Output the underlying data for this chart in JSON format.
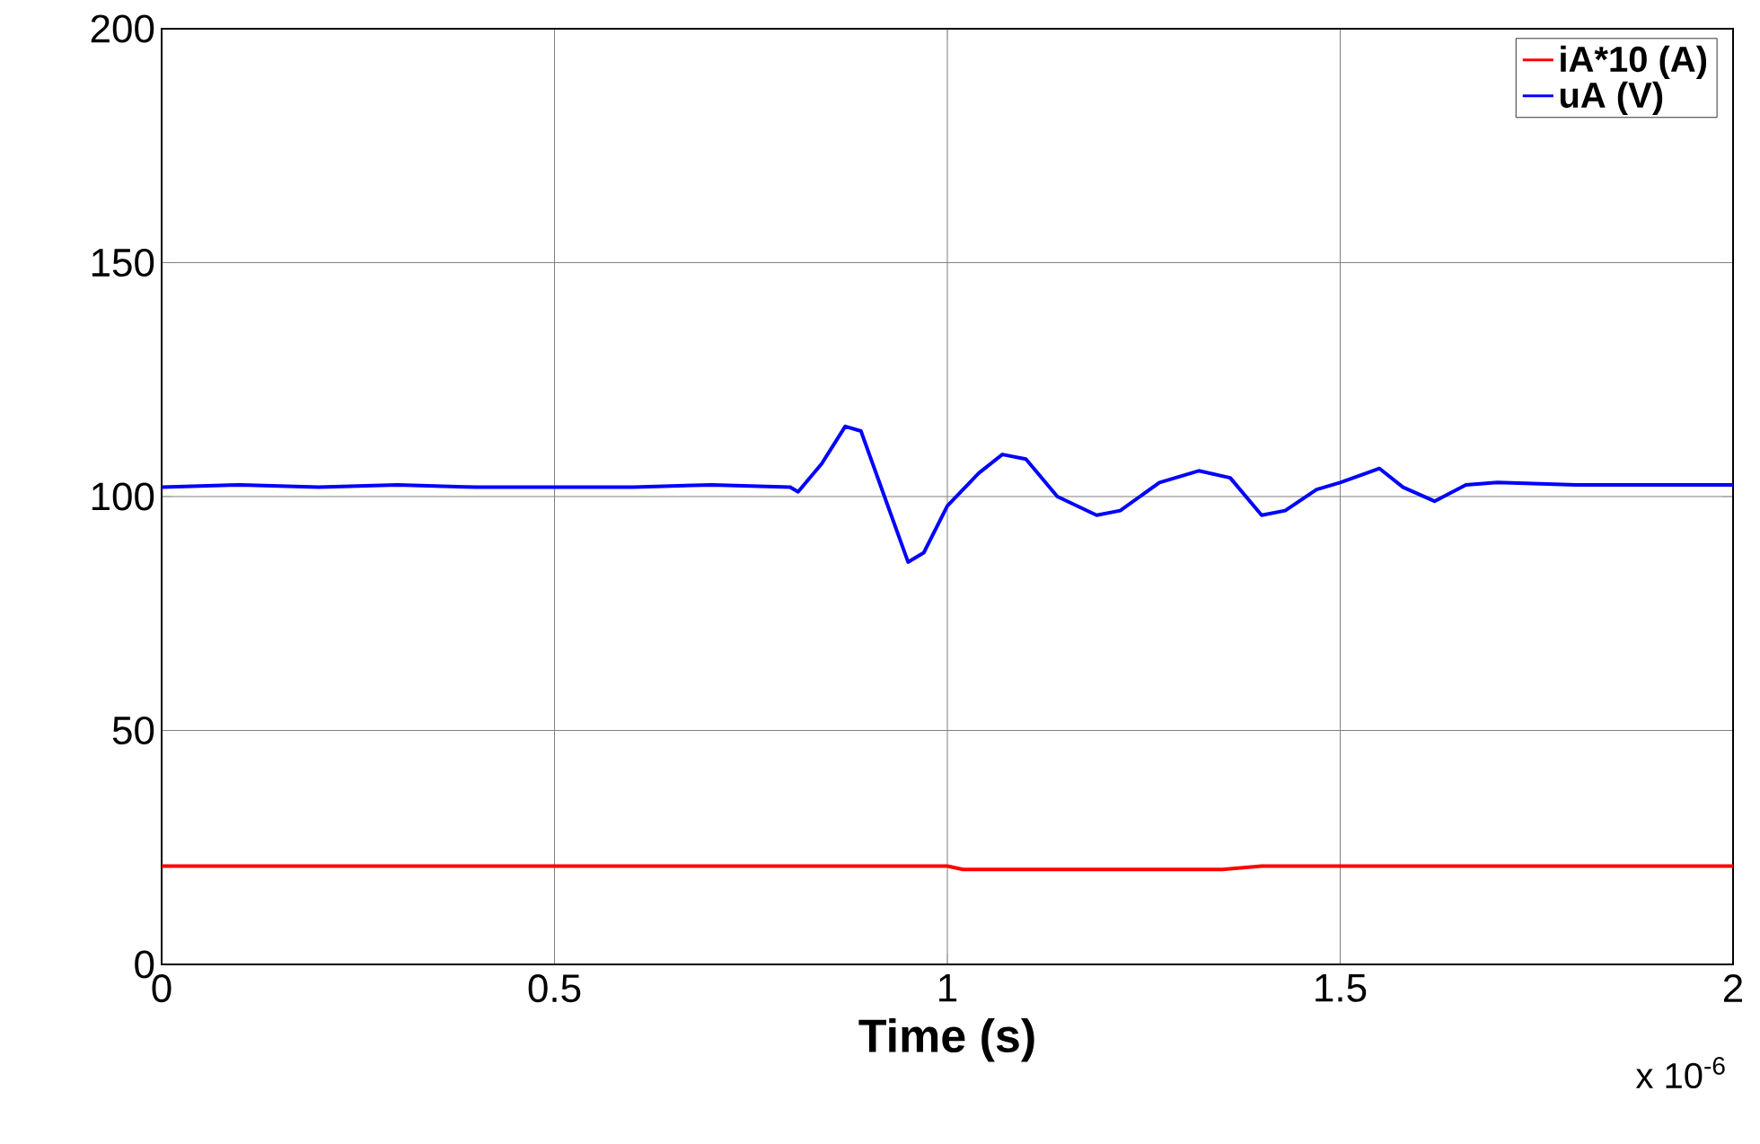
{
  "chart_data": {
    "type": "line",
    "xlabel": "**Time (s)**",
    "annotations": [
      "x 10$^{-6}$"
    ],
    "xlim": [
      0,
      2
    ],
    "ylim": [
      0,
      200
    ],
    "xticks": [
      0,
      0.5,
      1,
      1.5,
      2
    ],
    "yticks": [
      0,
      50,
      100,
      150,
      200
    ],
    "grid": true,
    "legend": "top right",
    "line_style": "solid",
    "marker": "none",
    "series": [
      {
        "name": "iA*10 (A)",
        "color": "#ff0000",
        "x": [
          0,
          1.0,
          1.02,
          1.35,
          1.4,
          2.0
        ],
        "values": [
          21,
          21,
          20.3,
          20.3,
          21,
          21
        ]
      },
      {
        "name": "uA (V)",
        "color": "#0000ff",
        "x": [
          0,
          0.1,
          0.2,
          0.3,
          0.4,
          0.5,
          0.6,
          0.7,
          0.8,
          0.81,
          0.84,
          0.87,
          0.89,
          0.92,
          0.95,
          0.97,
          1.0,
          1.04,
          1.07,
          1.1,
          1.14,
          1.19,
          1.22,
          1.27,
          1.32,
          1.36,
          1.4,
          1.43,
          1.47,
          1.5,
          1.55,
          1.58,
          1.62,
          1.66,
          1.7,
          1.8,
          1.9,
          2.0
        ],
        "values": [
          102,
          102.5,
          102,
          102.5,
          102,
          102,
          102,
          102.5,
          102,
          101,
          107,
          115,
          114,
          100,
          86,
          88,
          98,
          105,
          109,
          108,
          100,
          96,
          97,
          103,
          105.5,
          104,
          96,
          97,
          101.5,
          103,
          106,
          102,
          99,
          102.5,
          103,
          102.5,
          102.5,
          102.5
        ]
      }
    ]
  }
}
